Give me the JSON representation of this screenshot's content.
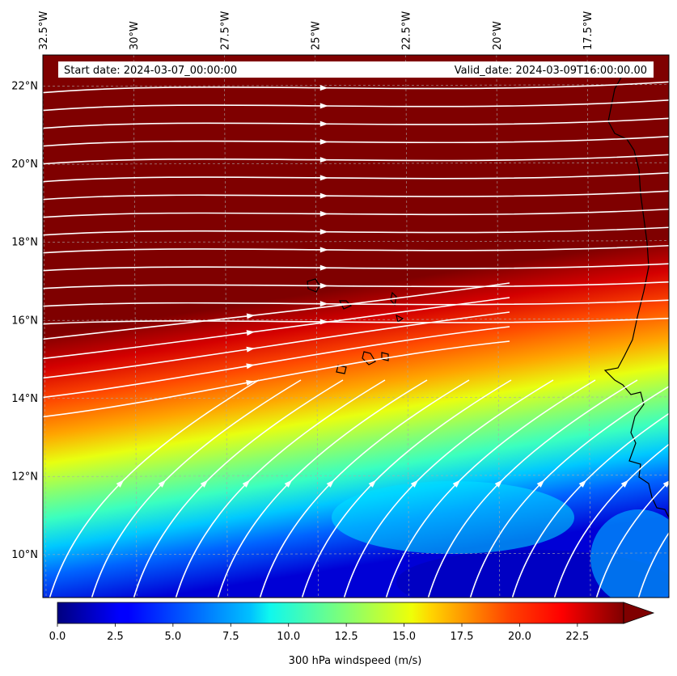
{
  "header": {
    "start_date": "Start date: 2024-03-07_00:00:00",
    "valid_date": "Valid_date: 2024-03-09T16:00:00.00"
  },
  "map": {
    "lon_range": [
      -32.5,
      -15.25
    ],
    "lat_range": [
      8.9,
      22.8
    ],
    "lon_ticks": [
      "32.5°W",
      "30°W",
      "27.5°W",
      "25°W",
      "22.5°W",
      "20°W",
      "17.5°W"
    ],
    "lon_tick_values": [
      -32.5,
      -30,
      -27.5,
      -25,
      -22.5,
      -20,
      -17.5
    ],
    "lat_ticks": [
      "22°N",
      "20°N",
      "18°N",
      "16°N",
      "14°N",
      "12°N",
      "10°N"
    ],
    "lat_tick_values": [
      22,
      20,
      18,
      16,
      14,
      12,
      10
    ],
    "gridlines": true,
    "streamline_color": "#ffffff",
    "coastline_color": "#000000"
  },
  "colorbar": {
    "label": "300 hPa windspeed (m/s)",
    "ticks": [
      "0.0",
      "2.5",
      "5.0",
      "7.5",
      "10.0",
      "12.5",
      "15.0",
      "17.5",
      "20.0",
      "22.5"
    ],
    "tick_values": [
      0,
      2.5,
      5,
      7.5,
      10,
      12.5,
      15,
      17.5,
      20,
      22.5
    ],
    "range": [
      0,
      24.5
    ],
    "colormap": "jet",
    "extend": "max"
  }
}
